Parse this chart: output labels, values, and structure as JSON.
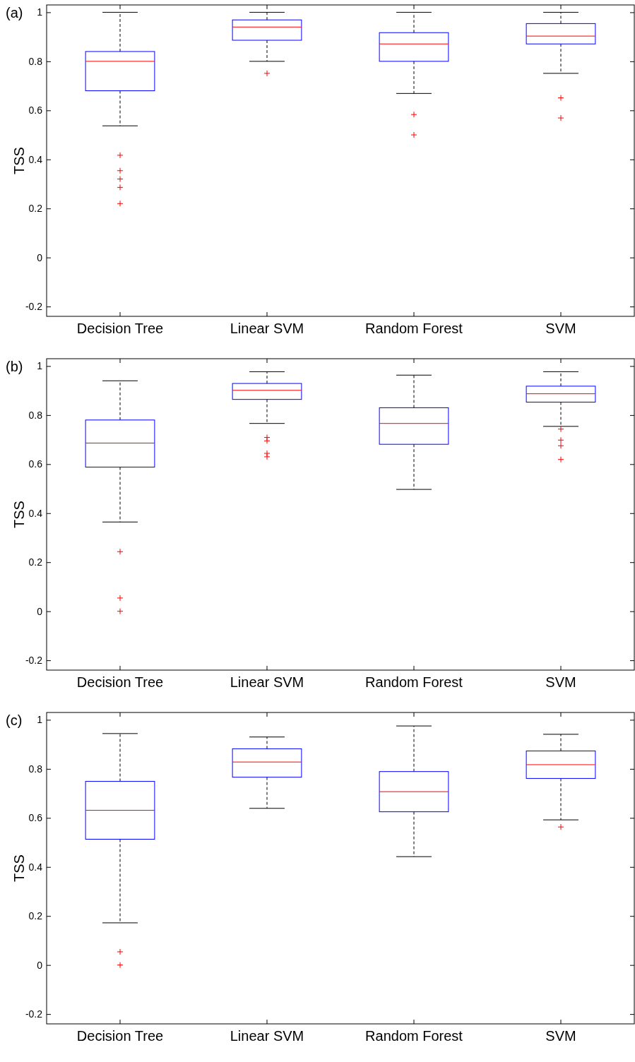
{
  "chart_data": [
    {
      "type": "box",
      "title": "(a)",
      "ylabel": "TSS",
      "categories": [
        "Decision Tree",
        "Linear SVM",
        "Random Forest",
        "SVM"
      ],
      "ylim": [
        -0.24,
        1.03
      ],
      "yticks": [
        -0.2,
        0,
        0.2,
        0.4,
        0.6,
        0.8,
        1
      ],
      "series": [
        {
          "color": "#0000ff",
          "boxes": [
            {
              "low": 0.537,
              "q1": 0.68,
              "median": 0.8,
              "q3": 0.84,
              "high": 1.0,
              "outliers": [
                0.417,
                0.354,
                0.32,
                0.286,
                0.22
              ]
            },
            {
              "low": 0.8,
              "q1": 0.886,
              "median": 0.94,
              "q3": 0.969,
              "high": 1.0,
              "outliers": [
                0.751
              ]
            },
            {
              "low": 0.669,
              "q1": 0.8,
              "median": 0.871,
              "q3": 0.917,
              "high": 1.0,
              "outliers": [
                0.583,
                0.5
              ]
            },
            {
              "low": 0.751,
              "q1": 0.871,
              "median": 0.903,
              "q3": 0.954,
              "high": 1.0,
              "outliers": [
                0.651,
                0.569
              ]
            }
          ]
        }
      ]
    },
    {
      "type": "box",
      "title": "(b)",
      "ylabel": "TSS",
      "categories": [
        "Decision Tree",
        "Linear SVM",
        "Random Forest",
        "SVM"
      ],
      "ylim": [
        -0.24,
        1.03
      ],
      "yticks": [
        -0.2,
        0,
        0.2,
        0.4,
        0.6,
        0.8,
        1
      ],
      "series": [
        {
          "color": "#0000ff",
          "boxes": [
            {
              "low": 0.364,
              "q1": 0.588,
              "median": 0.686,
              "q3": 0.78,
              "high": 0.94,
              "outliers": [
                0.243,
                0.054,
                0
              ]
            },
            {
              "low": 0.766,
              "q1": 0.864,
              "median": 0.901,
              "q3": 0.929,
              "high": 0.977,
              "outliers": [
                0.709,
                0.695,
                0.644,
                0.63
              ]
            },
            {
              "low": 0.497,
              "q1": 0.681,
              "median": 0.766,
              "q3": 0.83,
              "high": 0.963
            },
            {
              "low": 0.754,
              "q1": 0.853,
              "median": 0.887,
              "q3": 0.918,
              "high": 0.977,
              "outliers": [
                0.743,
                0.698,
                0.675,
                0.619
              ]
            }
          ]
        }
      ]
    },
    {
      "type": "box",
      "title": "(c)",
      "ylabel": "TSS",
      "categories": [
        "Decision Tree",
        "Linear SVM",
        "Random Forest",
        "SVM"
      ],
      "ylim": [
        -0.24,
        1.03
      ],
      "yticks": [
        -0.2,
        0,
        0.2,
        0.4,
        0.6,
        0.8,
        1
      ],
      "series": [
        {
          "color": "#0000ff",
          "boxes": [
            {
              "low": 0.172,
              "q1": 0.513,
              "median": 0.631,
              "q3": 0.749,
              "high": 0.944,
              "outliers": [
                0.054,
                0
              ]
            },
            {
              "low": 0.639,
              "q1": 0.766,
              "median": 0.828,
              "q3": 0.882,
              "high": 0.93
            },
            {
              "low": 0.442,
              "q1": 0.625,
              "median": 0.707,
              "q3": 0.789,
              "high": 0.975
            },
            {
              "low": 0.592,
              "q1": 0.761,
              "median": 0.817,
              "q3": 0.873,
              "high": 0.941,
              "outliers": [
                0.563
              ]
            }
          ]
        }
      ]
    }
  ]
}
